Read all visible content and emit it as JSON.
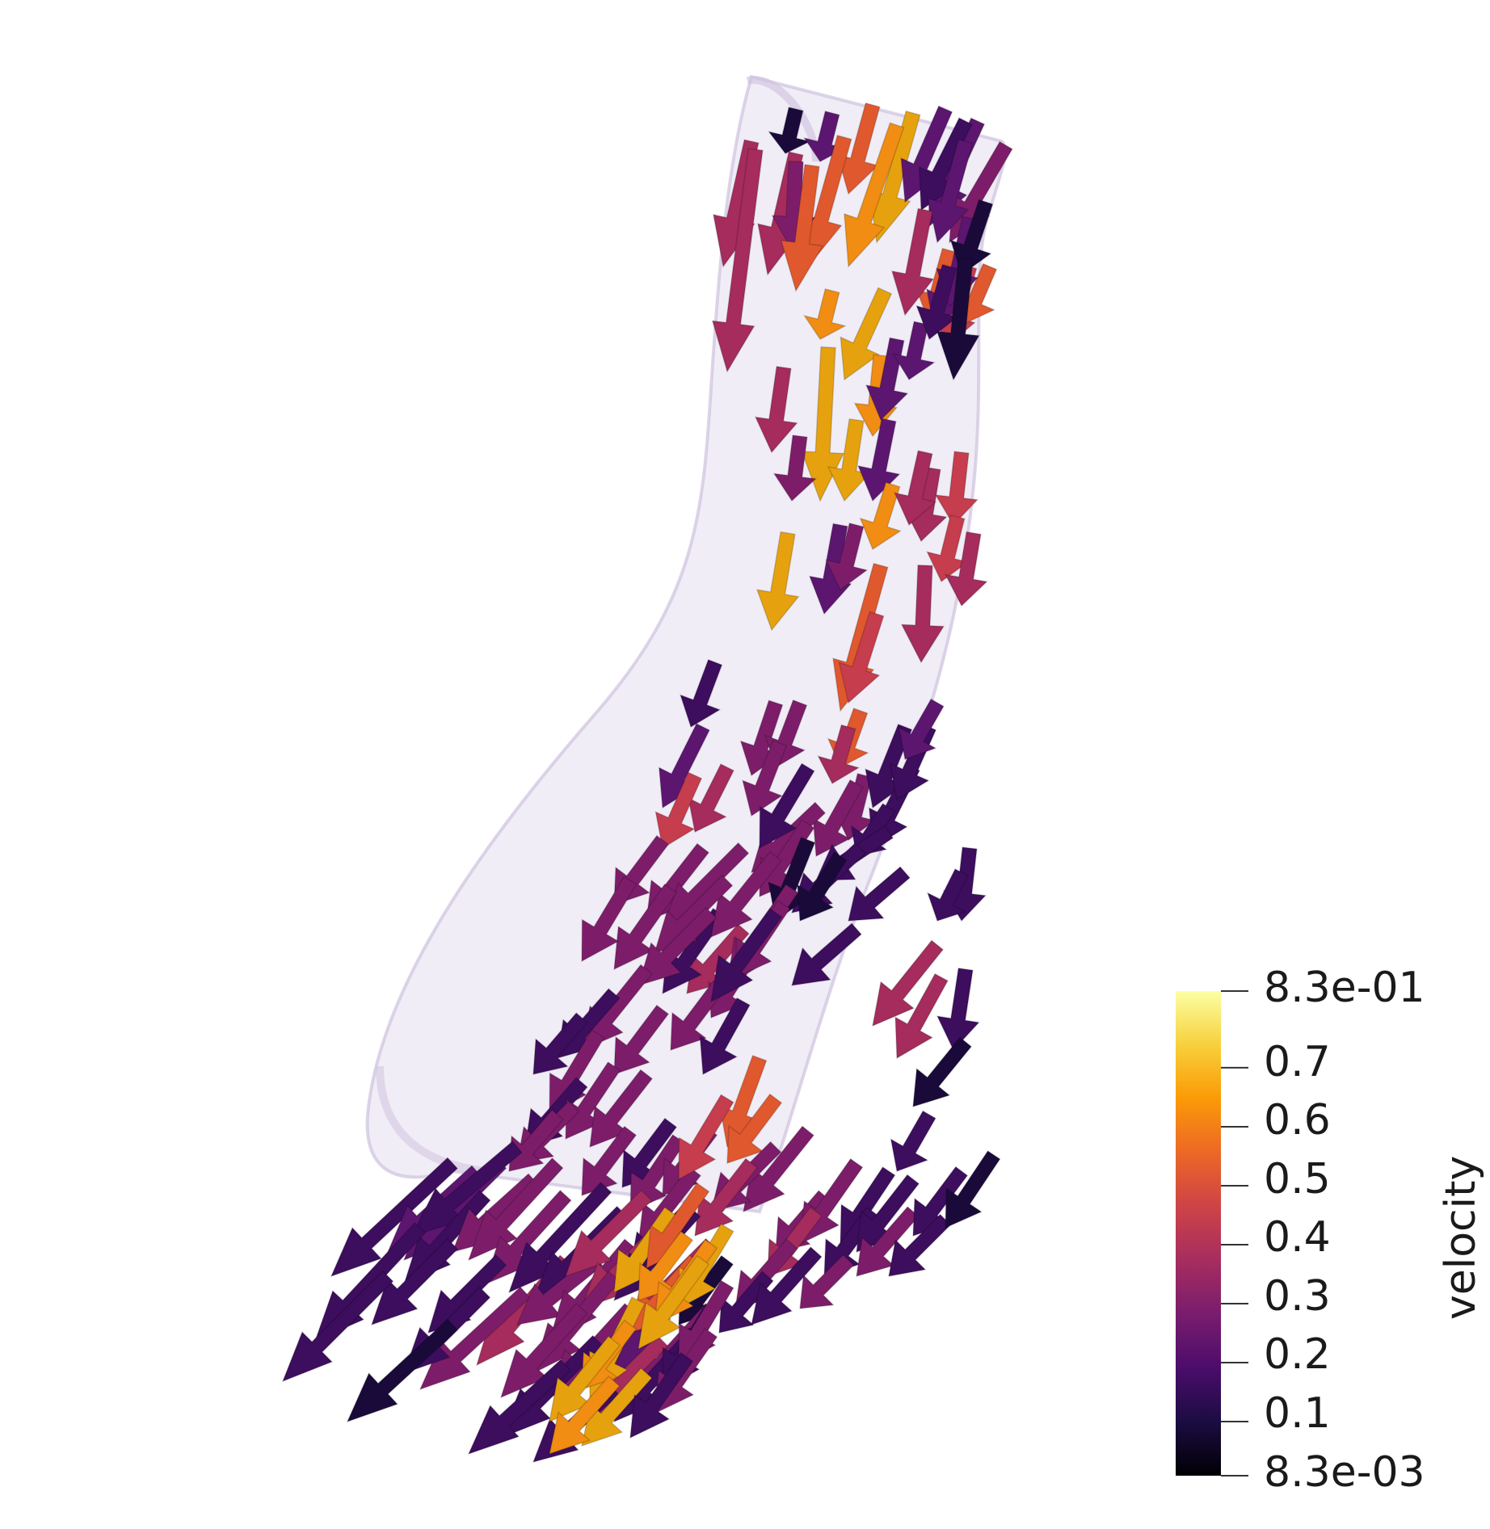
{
  "colorbar": {
    "title": "velocity",
    "tick_labels": [
      "8.3e-01",
      "0.7",
      "0.6",
      "0.5",
      "0.4",
      "0.3",
      "0.2",
      "0.1",
      "8.3e-03"
    ],
    "tick_values": [
      0.83,
      0.7,
      0.6,
      0.5,
      0.4,
      0.3,
      0.2,
      0.1,
      0.0083
    ],
    "range": [
      0.0083,
      0.83
    ],
    "colormap": "inferno",
    "colormap_stops": [
      "#000004",
      "#1b0c41",
      "#4a0c6b",
      "#781c6d",
      "#a52c60",
      "#cf4446",
      "#ed6925",
      "#fb9b06",
      "#f7d13d",
      "#fcffa4"
    ]
  },
  "scene": {
    "tube_color": "#dcd2e6",
    "background": "#ffffff"
  }
}
